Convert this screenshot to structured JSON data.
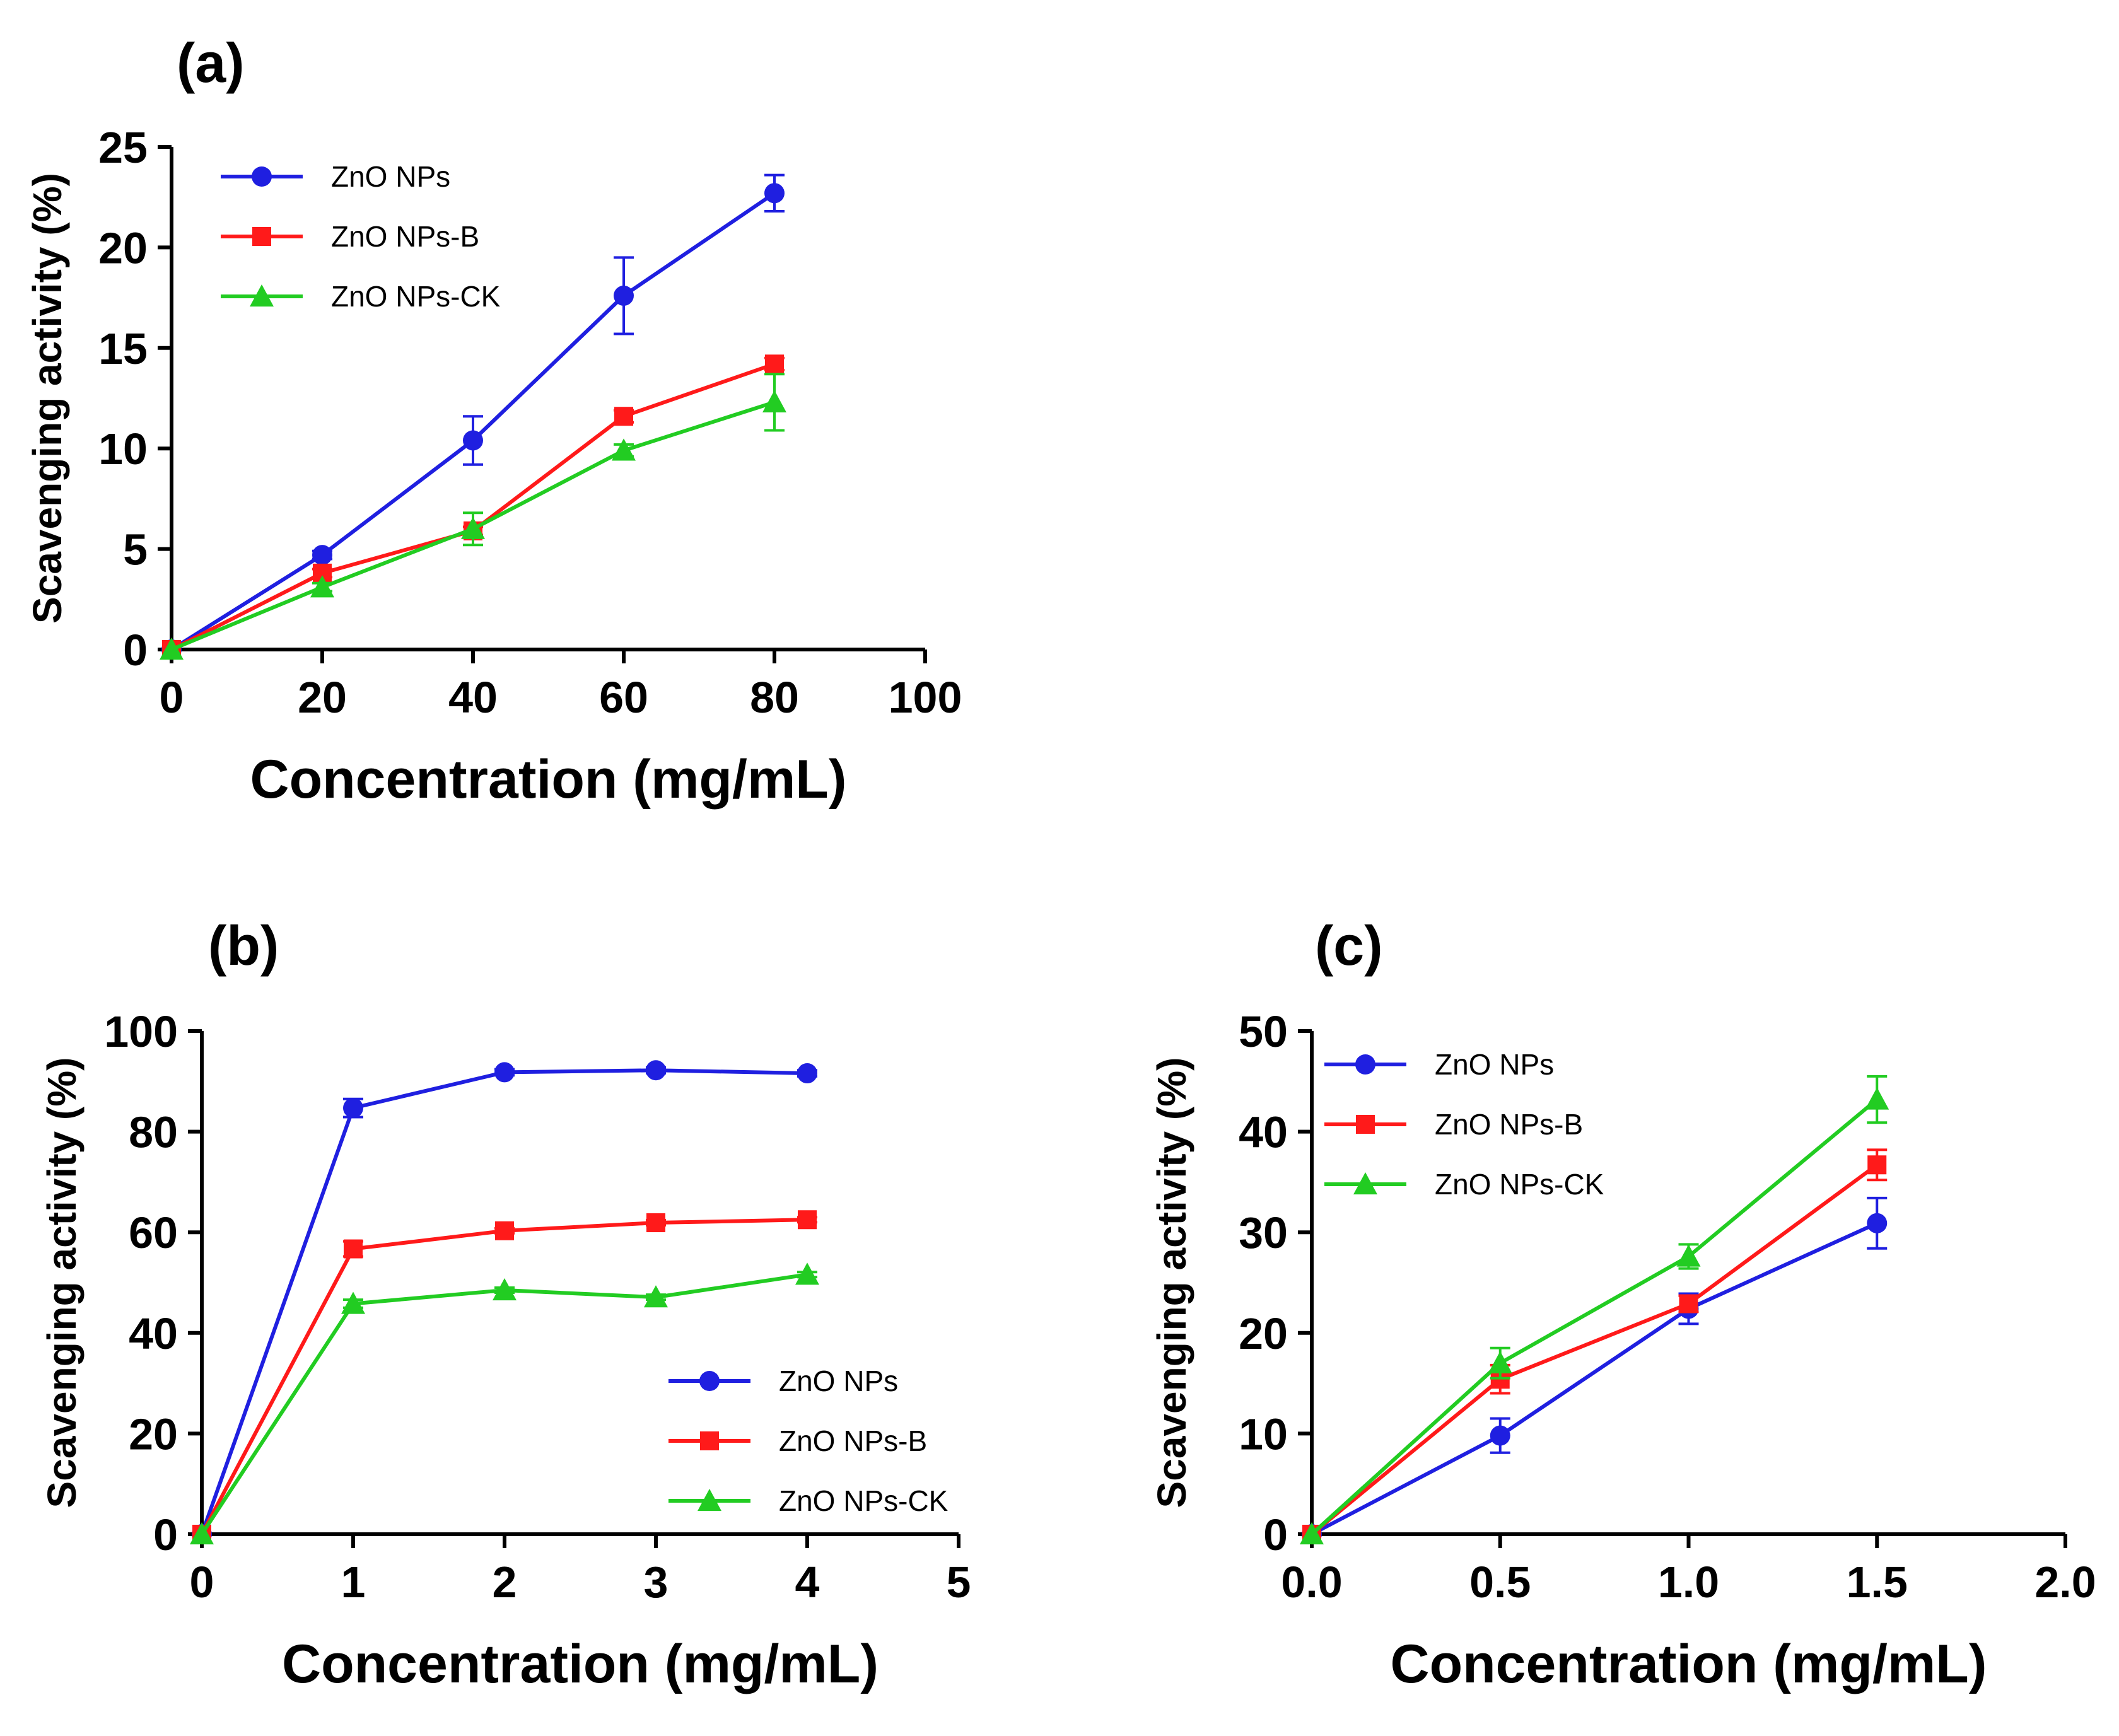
{
  "chart_data": [
    {
      "panel": "(a)",
      "type": "line",
      "xlabel": "Concentration (mg/mL)",
      "ylabel": "Scavenging activity (%)",
      "xlim": [
        0,
        100
      ],
      "ylim": [
        0,
        25
      ],
      "xticks": [
        "0",
        "20",
        "40",
        "60",
        "80",
        "100"
      ],
      "yticks": [
        "0",
        "5",
        "10",
        "15",
        "20",
        "25"
      ],
      "legend_position": "top-left",
      "x": [
        0,
        20,
        40,
        60,
        80
      ],
      "series": [
        {
          "name": "ZnO NPs",
          "color": "#1f1fe0",
          "marker": "circle",
          "values": [
            0,
            4.7,
            10.4,
            17.6,
            22.7
          ],
          "errors": [
            0,
            0.2,
            1.2,
            1.9,
            0.9
          ]
        },
        {
          "name": "ZnO NPs-B",
          "color": "#ff1a1a",
          "marker": "square",
          "values": [
            0,
            3.8,
            5.9,
            11.6,
            14.2
          ],
          "errors": [
            0,
            0.2,
            0.2,
            0.3,
            0.3
          ]
        },
        {
          "name": "ZnO NPs-CK",
          "color": "#22cc22",
          "marker": "triangle",
          "values": [
            0,
            3.1,
            6.0,
            9.9,
            12.3
          ],
          "errors": [
            0,
            0.2,
            0.8,
            0.3,
            1.4
          ]
        }
      ]
    },
    {
      "panel": "(b)",
      "type": "line",
      "xlabel": "Concentration (mg/mL)",
      "ylabel": "Scavenging activity (%)",
      "xlim": [
        0,
        5
      ],
      "ylim": [
        0,
        100
      ],
      "xticks": [
        "0",
        "1",
        "2",
        "3",
        "4",
        "5"
      ],
      "yticks": [
        "0",
        "20",
        "40",
        "60",
        "80",
        "100"
      ],
      "legend_position": "bottom-right",
      "x": [
        0,
        1,
        2,
        3,
        4
      ],
      "series": [
        {
          "name": "ZnO NPs",
          "color": "#1f1fe0",
          "marker": "circle",
          "values": [
            0,
            84.7,
            91.8,
            92.2,
            91.6
          ],
          "errors": [
            0,
            1.8,
            0.6,
            0.6,
            0.6
          ]
        },
        {
          "name": "ZnO NPs-B",
          "color": "#ff1a1a",
          "marker": "square",
          "values": [
            0,
            56.7,
            60.3,
            61.9,
            62.5
          ],
          "errors": [
            0,
            1.5,
            0.5,
            0.5,
            0.5
          ]
        },
        {
          "name": "ZnO NPs-CK",
          "color": "#22cc22",
          "marker": "triangle",
          "values": [
            0,
            45.8,
            48.5,
            47.1,
            51.6
          ],
          "errors": [
            0,
            0.8,
            0.5,
            0.5,
            0.5
          ]
        }
      ]
    },
    {
      "panel": "(c)",
      "type": "line",
      "xlabel": "Concentration (mg/mL)",
      "ylabel": "Scavenging activity (%)",
      "xlim": [
        0,
        2
      ],
      "ylim": [
        0,
        50
      ],
      "xticks": [
        "0.0",
        "0.5",
        "1.0",
        "1.5",
        "2.0"
      ],
      "yticks": [
        "0",
        "10",
        "20",
        "30",
        "40",
        "50"
      ],
      "legend_position": "top-left",
      "x": [
        0,
        0.5,
        1.0,
        1.5
      ],
      "series": [
        {
          "name": "ZnO NPs",
          "color": "#1f1fe0",
          "marker": "circle",
          "values": [
            0,
            9.8,
            22.4,
            30.9
          ],
          "errors": [
            0,
            1.7,
            1.5,
            2.5
          ]
        },
        {
          "name": "ZnO NPs-B",
          "color": "#ff1a1a",
          "marker": "square",
          "values": [
            0,
            15.4,
            22.9,
            36.7
          ],
          "errors": [
            0,
            1.4,
            0.8,
            1.5
          ]
        },
        {
          "name": "ZnO NPs-CK",
          "color": "#22cc22",
          "marker": "triangle",
          "values": [
            0,
            17.0,
            27.6,
            43.2
          ],
          "errors": [
            0,
            1.5,
            1.2,
            2.3
          ]
        }
      ]
    }
  ]
}
